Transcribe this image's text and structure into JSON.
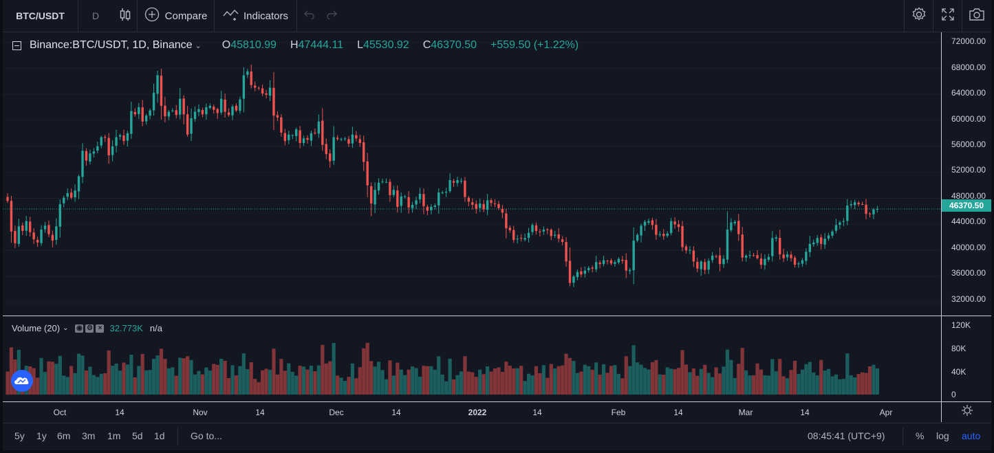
{
  "toolbar": {
    "symbol": "BTC/USDT",
    "interval": "D",
    "compare_label": "Compare",
    "indicators_label": "Indicators",
    "compare_icon": "plus-circle-icon",
    "indicators_icon": "indicators-icon",
    "candles_icon": "candlestick-icon",
    "undo_icon": "undo-icon",
    "redo_icon": "redo-icon",
    "settings_icon": "gear-icon",
    "fullscreen_icon": "fullscreen-icon",
    "snapshot_icon": "camera-icon"
  },
  "legend": {
    "title": "Binance:BTC/USDT, 1D, Binance",
    "open_label": "O",
    "open": "45810.99",
    "high_label": "H",
    "high": "47444.11",
    "low_label": "L",
    "low": "45530.92",
    "close_label": "C",
    "close": "46370.50",
    "change": "+559.50 (+1.22%)"
  },
  "volume_legend": {
    "label": "Volume (20)",
    "value": "32.773K",
    "ma": "n/a"
  },
  "price_axis": [
    "72000.00",
    "68000.00",
    "64000.00",
    "60000.00",
    "56000.00",
    "52000.00",
    "48000.00",
    "44000.00",
    "40000.00",
    "36000.00",
    "32000.00"
  ],
  "last_price_tag": "46370.50",
  "volume_axis": [
    "120K",
    "80K",
    "40K",
    "0"
  ],
  "time_axis": [
    "Oct",
    "14",
    "Nov",
    "14",
    "Dec",
    "14",
    "2022",
    "14",
    "Feb",
    "14",
    "Mar",
    "14",
    "Apr"
  ],
  "bottom": {
    "ranges": [
      "5y",
      "1y",
      "6m",
      "3m",
      "1m",
      "5d",
      "1d"
    ],
    "goto": "Go to...",
    "clock": "08:45:41 (UTC+9)",
    "percent": "%",
    "log": "log",
    "auto": "auto"
  },
  "colors": {
    "up": "#26a69a",
    "down": "#ef5350",
    "accent": "#2962ff",
    "background": "#131722"
  },
  "chart_data": {
    "type": "candlestick",
    "title": "Binance:BTC/USDT, 1D, Binance",
    "ylim": [
      30000,
      73500
    ],
    "volume_ylim": [
      0,
      130000
    ],
    "last": 46370.5,
    "closes": [
      47600,
      42900,
      41100,
      43700,
      43000,
      44500,
      42800,
      41700,
      41200,
      43200,
      43800,
      42500,
      41500,
      43700,
      47100,
      48100,
      48800,
      48100,
      49200,
      51400,
      55300,
      53800,
      54900,
      55200,
      56000,
      57400,
      57300,
      54600,
      56000,
      57400,
      57700,
      56800,
      58000,
      61400,
      60900,
      62000,
      59800,
      60700,
      61500,
      64200,
      66900,
      62200,
      60600,
      61300,
      61500,
      60800,
      63300,
      60900,
      57800,
      60300,
      61300,
      61700,
      60900,
      62000,
      62200,
      61600,
      61100,
      63300,
      61300,
      60800,
      62100,
      61500,
      63200,
      66900,
      67500,
      65400,
      65000,
      64900,
      64100,
      63900,
      65000,
      60700,
      60400,
      58100,
      56800,
      57800,
      57700,
      58600,
      56500,
      57200,
      57000,
      58000,
      58000,
      59800,
      56200,
      54800,
      53700,
      57400,
      57100,
      57100,
      57200,
      56400,
      57800,
      57200,
      56500,
      53600,
      50000,
      47200,
      49300,
      50400,
      50600,
      50500,
      48500,
      49300,
      46700,
      48300,
      48300,
      46600,
      47000,
      47700,
      48700,
      46800,
      46100,
      46700,
      46900,
      48900,
      48900,
      49000,
      50800,
      50400,
      50800,
      50700,
      48200,
      47500,
      47000,
      46400,
      47200,
      46300,
      47700,
      47300,
      47100,
      46500,
      45800,
      43400,
      43100,
      41600,
      41800,
      41800,
      41900,
      42700,
      43900,
      43000,
      42800,
      43200,
      43100,
      42200,
      42400,
      41800,
      41300,
      38300,
      35000,
      36000,
      36700,
      36300,
      36900,
      37300,
      37200,
      38200,
      37900,
      38500,
      38400,
      38000,
      38200,
      38700,
      38400,
      36900,
      37000,
      41500,
      42400,
      43800,
      44400,
      44500,
      43900,
      42400,
      42500,
      42200,
      42600,
      44500,
      44000,
      43600,
      40500,
      40000,
      40100,
      38300,
      37200,
      38300,
      37000,
      38400,
      39200,
      39100,
      37900,
      38700,
      43200,
      44300,
      44400,
      42500,
      38900,
      39200,
      39300,
      39200,
      38800,
      37800,
      38700,
      39000,
      41900,
      42000,
      39400,
      38800,
      39400,
      38800,
      37800,
      38000,
      38500,
      39800,
      41000,
      41200,
      41900,
      41000,
      41800,
      42300,
      42900,
      43900,
      44300,
      44500,
      46900,
      47100,
      47400,
      47100,
      47100,
      45600,
      45600,
      46300,
      46370
    ]
  }
}
